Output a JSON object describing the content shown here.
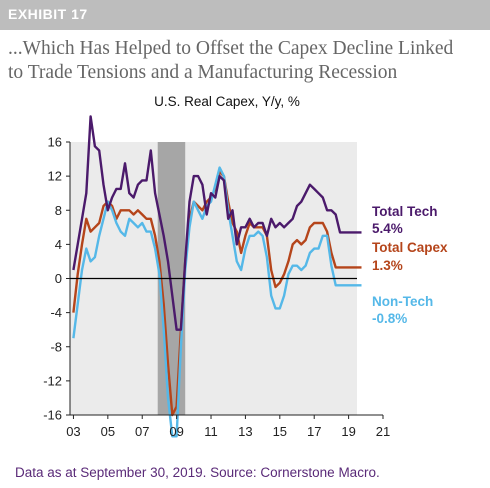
{
  "header": {
    "exhibit": "EXHIBIT 17",
    "title_line1": "...Which Has Helped to Offset the Capex Decline Linked",
    "title_line2": "to Trade Tensions and a Manufacturing Recession"
  },
  "footer": {
    "source": "Data as at September 30, 2019. Source: Cornerstone Macro."
  },
  "colors": {
    "total_tech": "#4b1a6b",
    "total_capex": "#b5451b",
    "non_tech": "#55b8e8",
    "recession_shading": "#a6a6a6",
    "plot_background": "#ebebeb"
  },
  "chart_data": {
    "type": "line",
    "title": "U.S. Real Capex, Y/y, %",
    "xlim": [
      2002.8,
      2021.0
    ],
    "ylim": [
      -16,
      16
    ],
    "x_ticks": [
      2003,
      2005,
      2007,
      2009,
      2011,
      2013,
      2015,
      2017,
      2019,
      2021
    ],
    "x_tick_labels": [
      "03",
      "05",
      "07",
      "09",
      "11",
      "13",
      "15",
      "17",
      "19",
      "21"
    ],
    "y_ticks": [
      16,
      12,
      8,
      4,
      0,
      -4,
      -8,
      -12,
      -16
    ],
    "y_tick_labels": [
      "16",
      "12",
      "8",
      "4",
      "0",
      "-4",
      "-8",
      "-12",
      "-16"
    ],
    "grid": false,
    "shaded_period": {
      "label": "recession",
      "x": [
        2007.9,
        2009.5
      ]
    },
    "series": [
      {
        "name": "Total Tech",
        "end_value_label": "5.4%",
        "color": "#4b1a6b",
        "x": [
          2003.0,
          2003.25,
          2003.5,
          2003.75,
          2004.0,
          2004.25,
          2004.5,
          2004.75,
          2005.0,
          2005.25,
          2005.5,
          2005.75,
          2006.0,
          2006.25,
          2006.5,
          2006.75,
          2007.0,
          2007.25,
          2007.5,
          2007.75,
          2008.0,
          2008.25,
          2008.5,
          2008.75,
          2009.0,
          2009.25,
          2009.5,
          2009.75,
          2010.0,
          2010.25,
          2010.5,
          2010.75,
          2011.0,
          2011.25,
          2011.5,
          2011.75,
          2012.0,
          2012.25,
          2012.5,
          2012.75,
          2013.0,
          2013.25,
          2013.5,
          2013.75,
          2014.0,
          2014.25,
          2014.5,
          2014.75,
          2015.0,
          2015.25,
          2015.5,
          2015.75,
          2016.0,
          2016.25,
          2016.5,
          2016.75,
          2017.0,
          2017.25,
          2017.5,
          2017.75,
          2018.0,
          2018.25,
          2018.5,
          2018.75,
          2019.0,
          2019.25,
          2019.5,
          2019.75
        ],
        "values": [
          1.0,
          4.0,
          7.0,
          10.0,
          19.0,
          15.5,
          15.0,
          11.0,
          8.0,
          9.5,
          10.5,
          10.5,
          13.5,
          10.0,
          9.5,
          11.0,
          11.5,
          11.5,
          15.0,
          10.0,
          7.5,
          5.0,
          2.0,
          -2.0,
          -6.0,
          -6.0,
          2.0,
          9.0,
          12.0,
          12.0,
          11.0,
          7.5,
          10.0,
          9.5,
          12.0,
          11.5,
          7.0,
          8.0,
          4.0,
          6.0,
          6.0,
          7.0,
          6.0,
          6.5,
          6.5,
          5.0,
          7.0,
          6.0,
          6.5,
          6.0,
          6.5,
          7.0,
          8.5,
          9.0,
          10.0,
          11.0,
          10.5,
          10.0,
          9.5,
          8.0,
          8.0,
          7.5,
          5.4,
          5.4,
          5.4,
          5.4,
          5.4,
          5.4
        ]
      },
      {
        "name": "Total Capex",
        "end_value_label": "1.3%",
        "color": "#b5451b",
        "x": [
          2003.0,
          2003.25,
          2003.5,
          2003.75,
          2004.0,
          2004.25,
          2004.5,
          2004.75,
          2005.0,
          2005.25,
          2005.5,
          2005.75,
          2006.0,
          2006.25,
          2006.5,
          2006.75,
          2007.0,
          2007.25,
          2007.5,
          2007.75,
          2008.0,
          2008.25,
          2008.5,
          2008.75,
          2009.0,
          2009.25,
          2009.5,
          2009.75,
          2010.0,
          2010.25,
          2010.5,
          2010.75,
          2011.0,
          2011.25,
          2011.5,
          2011.75,
          2012.0,
          2012.25,
          2012.5,
          2012.75,
          2013.0,
          2013.25,
          2013.5,
          2013.75,
          2014.0,
          2014.25,
          2014.5,
          2014.75,
          2015.0,
          2015.25,
          2015.5,
          2015.75,
          2016.0,
          2016.25,
          2016.5,
          2016.75,
          2017.0,
          2017.25,
          2017.5,
          2017.75,
          2018.0,
          2018.25,
          2018.5,
          2018.75,
          2019.0,
          2019.25,
          2019.5,
          2019.75
        ],
        "values": [
          -4.0,
          0.5,
          4.0,
          7.0,
          5.5,
          6.0,
          6.5,
          8.5,
          9.0,
          8.5,
          7.0,
          8.0,
          8.0,
          8.0,
          7.5,
          8.0,
          7.5,
          7.0,
          7.0,
          5.0,
          2.0,
          -3.0,
          -10.0,
          -16.0,
          -15.0,
          -6.0,
          2.0,
          7.0,
          9.0,
          8.5,
          8.0,
          9.0,
          9.5,
          10.5,
          12.5,
          12.0,
          9.0,
          6.5,
          5.5,
          3.0,
          5.0,
          6.5,
          6.0,
          6.0,
          6.0,
          5.0,
          1.0,
          -1.0,
          -0.5,
          0.5,
          2.0,
          4.0,
          4.5,
          4.0,
          4.5,
          6.0,
          6.5,
          6.5,
          6.5,
          5.5,
          3.0,
          1.3,
          1.3,
          1.3,
          1.3,
          1.3,
          1.3,
          1.3
        ]
      },
      {
        "name": "Non-Tech",
        "end_value_label": "-0.8%",
        "color": "#55b8e8",
        "x": [
          2003.0,
          2003.25,
          2003.5,
          2003.75,
          2004.0,
          2004.25,
          2004.5,
          2004.75,
          2005.0,
          2005.25,
          2005.5,
          2005.75,
          2006.0,
          2006.25,
          2006.5,
          2006.75,
          2007.0,
          2007.25,
          2007.5,
          2007.75,
          2008.0,
          2008.25,
          2008.5,
          2008.75,
          2009.0,
          2009.25,
          2009.5,
          2009.75,
          2010.0,
          2010.25,
          2010.5,
          2010.75,
          2011.0,
          2011.25,
          2011.5,
          2011.75,
          2012.0,
          2012.25,
          2012.5,
          2012.75,
          2013.0,
          2013.25,
          2013.5,
          2013.75,
          2014.0,
          2014.25,
          2014.5,
          2014.75,
          2015.0,
          2015.25,
          2015.5,
          2015.75,
          2016.0,
          2016.25,
          2016.5,
          2016.75,
          2017.0,
          2017.25,
          2017.5,
          2017.75,
          2018.0,
          2018.25,
          2018.5,
          2018.75,
          2019.0,
          2019.25,
          2019.5,
          2019.75
        ],
        "values": [
          -7.0,
          -3.0,
          1.0,
          3.5,
          2.0,
          2.5,
          5.0,
          7.0,
          9.0,
          8.0,
          6.5,
          5.5,
          5.0,
          7.0,
          6.5,
          6.0,
          6.5,
          5.5,
          5.5,
          3.5,
          0.5,
          -6.0,
          -14.0,
          -18.5,
          -18.5,
          -8.0,
          1.0,
          6.0,
          9.0,
          8.0,
          7.0,
          8.5,
          9.0,
          11.0,
          13.0,
          12.0,
          8.0,
          5.0,
          2.0,
          1.0,
          3.5,
          5.0,
          5.0,
          5.5,
          5.0,
          2.5,
          -2.0,
          -3.5,
          -3.5,
          -2.0,
          0.5,
          1.5,
          1.5,
          1.0,
          1.5,
          3.0,
          3.5,
          3.5,
          5.0,
          5.0,
          1.5,
          -0.8,
          -0.8,
          -0.8,
          -0.8,
          -0.8,
          -0.8,
          -0.8
        ]
      }
    ]
  }
}
